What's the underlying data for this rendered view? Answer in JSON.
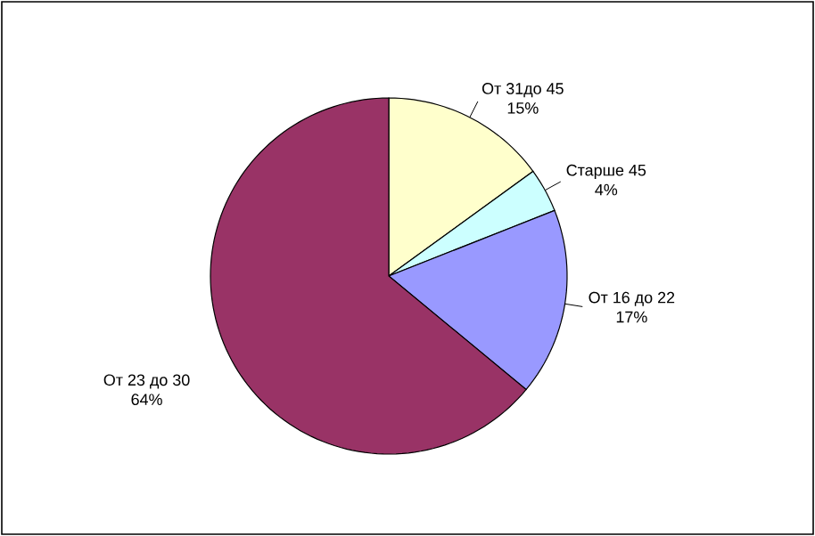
{
  "chart_data": {
    "type": "pie",
    "categories": [
      "От 31до 45",
      "Старше 45",
      "От 16 до 22",
      "От 23 до 30"
    ],
    "values": [
      15,
      4,
      17,
      64
    ],
    "value_labels": [
      "15%",
      "4%",
      "17%",
      "64%"
    ],
    "colors": [
      "#ffffcc",
      "#ccffff",
      "#9999ff",
      "#993366"
    ]
  }
}
